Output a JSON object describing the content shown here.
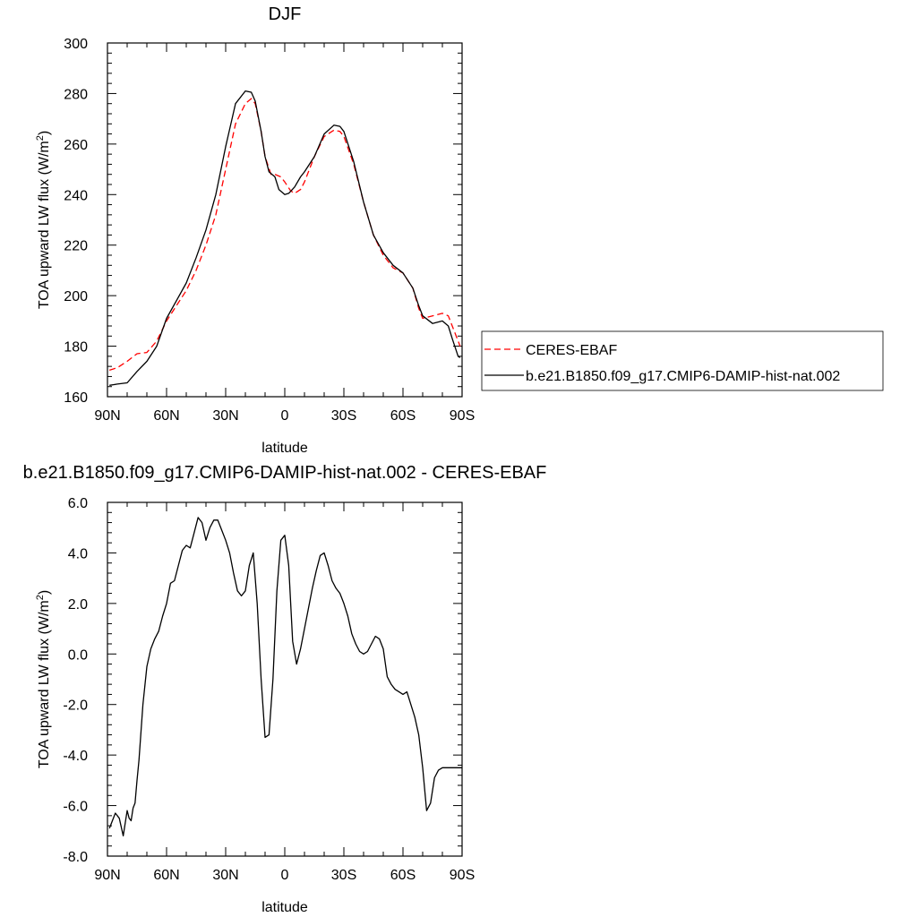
{
  "chart_data": [
    {
      "type": "line",
      "title": "DJF",
      "xlabel": "latitude",
      "ylabel": "TOA upward LW flux (W/m",
      "ylabel_superscript": "2",
      "ylabel_suffix": ")",
      "xlim": [
        90,
        -90
      ],
      "ylim": [
        160,
        300
      ],
      "xticks": [
        90,
        60,
        30,
        0,
        -30,
        -60,
        -90
      ],
      "xtick_labels": [
        "90N",
        "60N",
        "30N",
        "0",
        "30S",
        "60S",
        "90S"
      ],
      "yticks": [
        160,
        180,
        200,
        220,
        240,
        260,
        280,
        300
      ],
      "ytick_labels": [
        "160",
        "180",
        "200",
        "220",
        "240",
        "260",
        "280",
        "300"
      ],
      "grid": false,
      "legend_position": "right",
      "series": [
        {
          "name": "CERES-EBAF",
          "color": "#ff0000",
          "dash": "dashed",
          "x": [
            89,
            85,
            80,
            75,
            70,
            65,
            60,
            55,
            50,
            45,
            40,
            35,
            30,
            25,
            20,
            17,
            15,
            12,
            10,
            7,
            5,
            2,
            0,
            -3,
            -5,
            -8,
            -10,
            -15,
            -20,
            -25,
            -28,
            -30,
            -35,
            -40,
            -45,
            -50,
            -55,
            -60,
            -65,
            -68,
            -70,
            -75,
            -80,
            -83,
            -85,
            -88,
            -89
          ],
          "y": [
            170.5,
            171.5,
            174,
            177,
            177.5,
            182,
            190,
            196,
            202,
            210,
            220,
            232,
            250,
            268,
            276,
            278,
            276,
            265,
            255,
            248,
            248,
            247,
            245,
            241.5,
            240.5,
            242,
            245,
            255,
            263,
            265.5,
            265,
            263,
            252,
            237,
            224,
            216,
            211,
            209,
            203,
            195,
            191,
            192,
            193,
            192,
            188,
            182,
            180
          ]
        },
        {
          "name": "b.e21.B1850.f09_g17.CMIP6-DAMIP-hist-nat.002",
          "color": "#000000",
          "dash": "solid",
          "x": [
            89,
            85,
            80,
            75,
            70,
            65,
            60,
            55,
            50,
            45,
            40,
            35,
            30,
            25,
            20,
            17,
            15,
            12,
            10,
            8,
            5,
            3,
            0,
            -2,
            -5,
            -8,
            -10,
            -15,
            -20,
            -25,
            -28,
            -30,
            -35,
            -40,
            -45,
            -50,
            -55,
            -60,
            -65,
            -68,
            -70,
            -75,
            -80,
            -83,
            -85,
            -88,
            -89
          ],
          "y": [
            164.5,
            165,
            165.5,
            170,
            174,
            180,
            191,
            198,
            205,
            215,
            226,
            240,
            259,
            276,
            281,
            280.5,
            277,
            265,
            255,
            249,
            247,
            242,
            240,
            240.5,
            243,
            247,
            249,
            255,
            264,
            267.5,
            267,
            265,
            253,
            237,
            224,
            217,
            212,
            209,
            203,
            196,
            192,
            189,
            190,
            188,
            183,
            176,
            175.5
          ]
        }
      ]
    },
    {
      "type": "line",
      "title": "b.e21.B1850.f09_g17.CMIP6-DAMIP-hist-nat.002 - CERES-EBAF",
      "xlabel": "latitude",
      "ylabel": "TOA upward LW flux (W/m",
      "ylabel_superscript": "2",
      "ylabel_suffix": ")",
      "xlim": [
        90,
        -90
      ],
      "ylim": [
        -8,
        6
      ],
      "xticks": [
        90,
        60,
        30,
        0,
        -30,
        -60,
        -90
      ],
      "xtick_labels": [
        "90N",
        "60N",
        "30N",
        "0",
        "30S",
        "60S",
        "90S"
      ],
      "yticks": [
        -8,
        -6,
        -4,
        -2,
        0,
        2,
        4,
        6
      ],
      "ytick_labels": [
        "-8.0",
        "-6.0",
        "-4.0",
        "-2.0",
        "0.0",
        "2.0",
        "4.0",
        "6.0"
      ],
      "grid": false,
      "series": [
        {
          "color": "#000000",
          "dash": "solid",
          "x": [
            89,
            86,
            84,
            82,
            80,
            79,
            78,
            77,
            76,
            75,
            74,
            72,
            70,
            68,
            66,
            64,
            62,
            60,
            58,
            56,
            54,
            52,
            50,
            48,
            46,
            44,
            42,
            40,
            38,
            36,
            34,
            32,
            30,
            28,
            26,
            24,
            22,
            20,
            18,
            16,
            14,
            12,
            10,
            8,
            6,
            4,
            2,
            0,
            -2,
            -4,
            -6,
            -8,
            -10,
            -12,
            -14,
            -16,
            -18,
            -20,
            -22,
            -24,
            -26,
            -28,
            -30,
            -32,
            -34,
            -36,
            -38,
            -40,
            -42,
            -44,
            -46,
            -48,
            -50,
            -52,
            -54,
            -56,
            -58,
            -60,
            -62,
            -64,
            -66,
            -68,
            -70,
            -72,
            -74,
            -76,
            -78,
            -80,
            -82,
            -84,
            -86,
            -88,
            -90
          ],
          "y": [
            -6.9,
            -6.3,
            -6.5,
            -7.2,
            -6.2,
            -6.5,
            -6.6,
            -6.1,
            -5.9,
            -5.0,
            -4.2,
            -2.0,
            -0.5,
            0.2,
            0.6,
            0.9,
            1.5,
            2.0,
            2.8,
            2.9,
            3.5,
            4.1,
            4.3,
            4.2,
            4.8,
            5.4,
            5.2,
            4.5,
            5.0,
            5.3,
            5.3,
            4.9,
            4.5,
            4.0,
            3.2,
            2.5,
            2.3,
            2.5,
            3.5,
            4.0,
            2.0,
            -1.0,
            -3.3,
            -3.2,
            -1.0,
            2.5,
            4.5,
            4.7,
            3.5,
            0.5,
            -0.4,
            0.2,
            1.0,
            1.8,
            2.6,
            3.3,
            3.9,
            4.0,
            3.5,
            2.9,
            2.6,
            2.4,
            2.0,
            1.5,
            0.8,
            0.4,
            0.1,
            0.0,
            0.1,
            0.4,
            0.7,
            0.6,
            0.2,
            -0.9,
            -1.2,
            -1.4,
            -1.5,
            -1.6,
            -1.5,
            -2.0,
            -2.5,
            -3.2,
            -4.5,
            -6.2,
            -5.9,
            -4.9,
            -4.6,
            -4.5,
            -4.5,
            -4.5,
            -4.5,
            -4.5,
            -4.5
          ]
        }
      ]
    }
  ]
}
